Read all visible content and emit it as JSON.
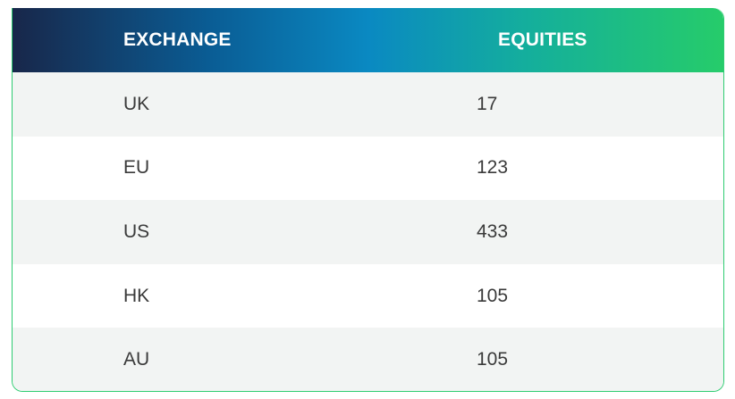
{
  "table": {
    "headers": [
      "EXCHANGE",
      "EQUITIES"
    ],
    "rows": [
      {
        "exchange": "UK",
        "equities": "17"
      },
      {
        "exchange": "EU",
        "equities": "123"
      },
      {
        "exchange": "US",
        "equities": "433"
      },
      {
        "exchange": "HK",
        "equities": "105"
      },
      {
        "exchange": "AU",
        "equities": "105"
      }
    ]
  },
  "colors": {
    "header_gradient": [
      "#18274a",
      "#0a5d95",
      "#0a89c2",
      "#14ae9d",
      "#26cc6a"
    ],
    "alt_row": "#f2f4f3",
    "border": "#2ecc71",
    "text": "#3a3a3a"
  }
}
